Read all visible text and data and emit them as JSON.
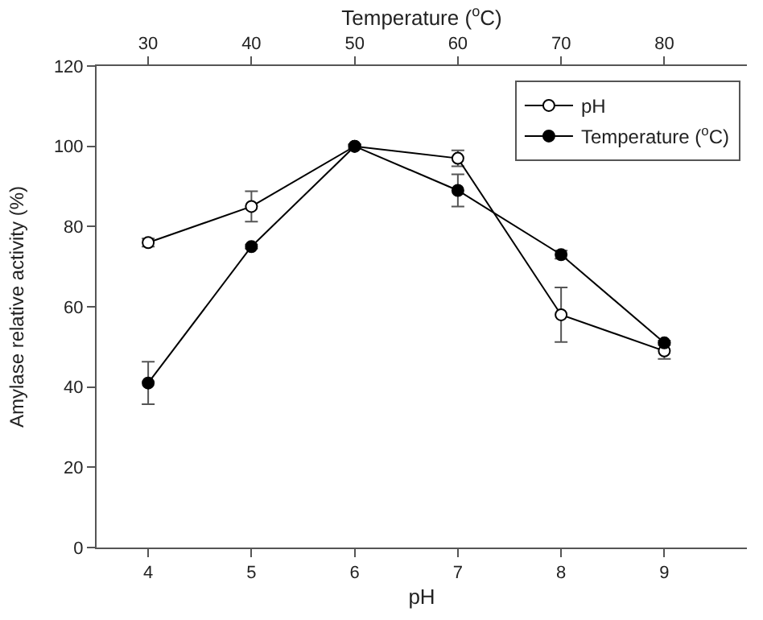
{
  "chart_data": {
    "type": "line",
    "xlabel": "pH",
    "x2label": "Temperature ($^{o}$C)",
    "ylabel": "Amylase relative activity (%)",
    "xlim": [
      3.5,
      9.8
    ],
    "xticks": [
      4,
      5,
      6,
      7,
      8,
      9
    ],
    "x2lim": [
      25,
      88
    ],
    "x2ticks": [
      30,
      40,
      50,
      60,
      70,
      80
    ],
    "ylim": [
      0,
      120
    ],
    "yticks": [
      0,
      20,
      40,
      60,
      80,
      100,
      120
    ],
    "legend": "top right",
    "line_style": "solid",
    "series": [
      {
        "name": "pH",
        "color": "#000000",
        "marker": "circle-open",
        "x": [
          4,
          5,
          6,
          7,
          8,
          9
        ],
        "values": [
          76,
          85,
          100,
          97,
          58,
          49
        ],
        "errors": [
          1,
          3.8,
          0.5,
          2,
          6.8,
          2
        ]
      },
      {
        "name": "Temperature ($^{o}$C)",
        "color": "#000000",
        "marker": "circle",
        "axis": "x2",
        "x": [
          30,
          40,
          50,
          60,
          70,
          80
        ],
        "values": [
          41,
          75,
          100,
          89,
          73,
          51
        ],
        "errors": [
          5.3,
          0.5,
          0.5,
          4,
          1,
          0.5
        ]
      }
    ]
  }
}
